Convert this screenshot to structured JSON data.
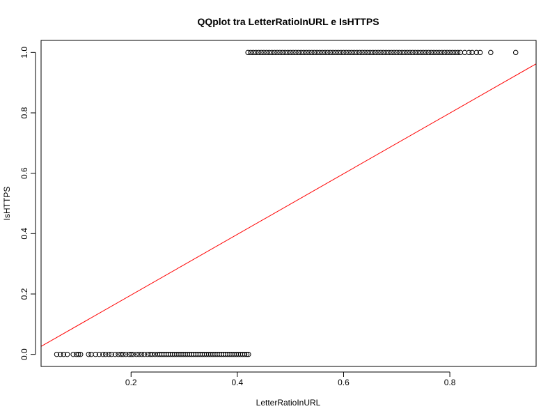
{
  "chart_data": {
    "type": "scatter",
    "title": "QQplot tra LetterRatioInURL e IsHTTPS",
    "xlabel": "LetterRatioInURL",
    "ylabel": "IsHTTPS",
    "xlim": [
      0.0306,
      0.9624
    ],
    "ylim": [
      -0.04,
      1.04
    ],
    "x_ticks": [
      "0.2",
      "0.4",
      "0.6",
      "0.8"
    ],
    "x_tick_values": [
      0.2,
      0.4,
      0.6,
      0.8
    ],
    "y_ticks": [
      "0.0",
      "0.2",
      "0.4",
      "0.6",
      "0.8",
      "1.0"
    ],
    "y_tick_values": [
      0.0,
      0.2,
      0.4,
      0.6,
      0.8,
      1.0
    ],
    "grid": false,
    "reference_line": {
      "color": "#ff0000",
      "points": [
        [
          0.0306,
          0.0264
        ],
        [
          0.9624,
          0.9624
        ]
      ]
    },
    "series": [
      {
        "marker": "open-circle",
        "color": "#000000",
        "points": [
          [
            0.06,
            0
          ],
          [
            0.067,
            0
          ],
          [
            0.073,
            0
          ],
          [
            0.08,
            0
          ],
          [
            0.091,
            0
          ],
          [
            0.097,
            0
          ],
          [
            0.101,
            0
          ],
          [
            0.105,
            0
          ],
          [
            0.12,
            0
          ],
          [
            0.125,
            0
          ],
          [
            0.133,
            0
          ],
          [
            0.14,
            0
          ],
          [
            0.147,
            0
          ],
          [
            0.152,
            0
          ],
          [
            0.158,
            0
          ],
          [
            0.163,
            0
          ],
          [
            0.17,
            0
          ],
          [
            0.176,
            0
          ],
          [
            0.181,
            0
          ],
          [
            0.185,
            0
          ],
          [
            0.19,
            0
          ],
          [
            0.196,
            0
          ],
          [
            0.2,
            0
          ],
          [
            0.204,
            0
          ],
          [
            0.21,
            0
          ],
          [
            0.215,
            0
          ],
          [
            0.22,
            0
          ],
          [
            0.225,
            0
          ],
          [
            0.231,
            0
          ],
          [
            0.236,
            0
          ],
          [
            0.24,
            0
          ],
          [
            0.245,
            0
          ],
          [
            0.25,
            0
          ],
          [
            0.254,
            0
          ],
          [
            0.258,
            0
          ],
          [
            0.262,
            0
          ],
          [
            0.266,
            0
          ],
          [
            0.27,
            0
          ],
          [
            0.274,
            0
          ],
          [
            0.278,
            0
          ],
          [
            0.282,
            0
          ],
          [
            0.286,
            0
          ],
          [
            0.29,
            0
          ],
          [
            0.294,
            0
          ],
          [
            0.298,
            0
          ],
          [
            0.302,
            0
          ],
          [
            0.306,
            0
          ],
          [
            0.31,
            0
          ],
          [
            0.314,
            0
          ],
          [
            0.318,
            0
          ],
          [
            0.322,
            0
          ],
          [
            0.326,
            0
          ],
          [
            0.33,
            0
          ],
          [
            0.334,
            0
          ],
          [
            0.338,
            0
          ],
          [
            0.342,
            0
          ],
          [
            0.346,
            0
          ],
          [
            0.35,
            0
          ],
          [
            0.354,
            0
          ],
          [
            0.358,
            0
          ],
          [
            0.362,
            0
          ],
          [
            0.366,
            0
          ],
          [
            0.37,
            0
          ],
          [
            0.374,
            0
          ],
          [
            0.378,
            0
          ],
          [
            0.382,
            0
          ],
          [
            0.386,
            0
          ],
          [
            0.39,
            0
          ],
          [
            0.394,
            0
          ],
          [
            0.398,
            0
          ],
          [
            0.402,
            0
          ],
          [
            0.406,
            0
          ],
          [
            0.41,
            0
          ],
          [
            0.414,
            0
          ],
          [
            0.418,
            0
          ],
          [
            0.421,
            0
          ],
          [
            0.42,
            1
          ],
          [
            0.425,
            1
          ],
          [
            0.43,
            1
          ],
          [
            0.435,
            1
          ],
          [
            0.44,
            1
          ],
          [
            0.445,
            1
          ],
          [
            0.45,
            1
          ],
          [
            0.455,
            1
          ],
          [
            0.46,
            1
          ],
          [
            0.465,
            1
          ],
          [
            0.47,
            1
          ],
          [
            0.475,
            1
          ],
          [
            0.48,
            1
          ],
          [
            0.485,
            1
          ],
          [
            0.49,
            1
          ],
          [
            0.495,
            1
          ],
          [
            0.5,
            1
          ],
          [
            0.505,
            1
          ],
          [
            0.51,
            1
          ],
          [
            0.515,
            1
          ],
          [
            0.52,
            1
          ],
          [
            0.525,
            1
          ],
          [
            0.53,
            1
          ],
          [
            0.535,
            1
          ],
          [
            0.54,
            1
          ],
          [
            0.545,
            1
          ],
          [
            0.55,
            1
          ],
          [
            0.555,
            1
          ],
          [
            0.56,
            1
          ],
          [
            0.565,
            1
          ],
          [
            0.57,
            1
          ],
          [
            0.575,
            1
          ],
          [
            0.58,
            1
          ],
          [
            0.585,
            1
          ],
          [
            0.59,
            1
          ],
          [
            0.595,
            1
          ],
          [
            0.6,
            1
          ],
          [
            0.605,
            1
          ],
          [
            0.61,
            1
          ],
          [
            0.615,
            1
          ],
          [
            0.62,
            1
          ],
          [
            0.625,
            1
          ],
          [
            0.63,
            1
          ],
          [
            0.635,
            1
          ],
          [
            0.64,
            1
          ],
          [
            0.645,
            1
          ],
          [
            0.65,
            1
          ],
          [
            0.655,
            1
          ],
          [
            0.66,
            1
          ],
          [
            0.665,
            1
          ],
          [
            0.67,
            1
          ],
          [
            0.675,
            1
          ],
          [
            0.68,
            1
          ],
          [
            0.685,
            1
          ],
          [
            0.69,
            1
          ],
          [
            0.695,
            1
          ],
          [
            0.7,
            1
          ],
          [
            0.705,
            1
          ],
          [
            0.71,
            1
          ],
          [
            0.715,
            1
          ],
          [
            0.72,
            1
          ],
          [
            0.725,
            1
          ],
          [
            0.73,
            1
          ],
          [
            0.735,
            1
          ],
          [
            0.74,
            1
          ],
          [
            0.745,
            1
          ],
          [
            0.75,
            1
          ],
          [
            0.755,
            1
          ],
          [
            0.76,
            1
          ],
          [
            0.765,
            1
          ],
          [
            0.77,
            1
          ],
          [
            0.775,
            1
          ],
          [
            0.78,
            1
          ],
          [
            0.785,
            1
          ],
          [
            0.79,
            1
          ],
          [
            0.795,
            1
          ],
          [
            0.8,
            1
          ],
          [
            0.805,
            1
          ],
          [
            0.81,
            1
          ],
          [
            0.815,
            1
          ],
          [
            0.82,
            1
          ],
          [
            0.828,
            1
          ],
          [
            0.836,
            1
          ],
          [
            0.842,
            1
          ],
          [
            0.85,
            1
          ],
          [
            0.857,
            1
          ],
          [
            0.877,
            1
          ],
          [
            0.924,
            1
          ]
        ]
      }
    ]
  }
}
